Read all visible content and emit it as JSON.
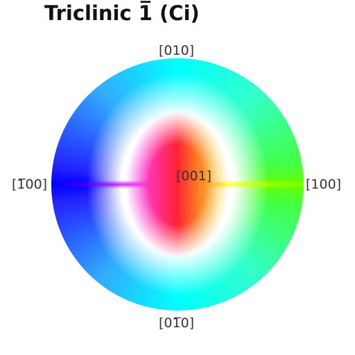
{
  "title": "Triclinic 1̅ (Ci)",
  "labels": {
    "top": "[010]",
    "right": "[100]",
    "left": "[1̅00]",
    "bottom": "[01̅0]",
    "center": "[001]"
  }
}
